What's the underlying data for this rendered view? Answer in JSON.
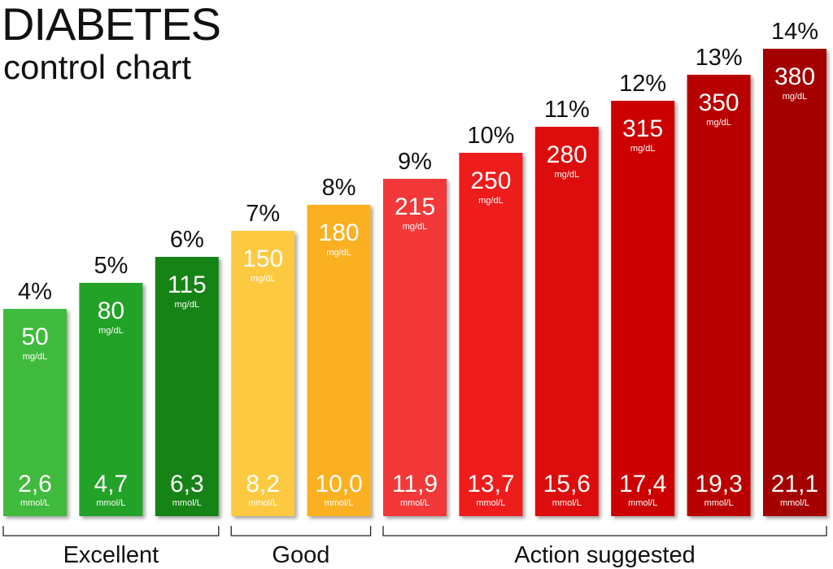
{
  "title": "DIABETES",
  "subtitle": "control chart",
  "colors": {
    "excellent": [
      "#3fba3c",
      "#23a227",
      "#128316"
    ],
    "good": [
      "#fdc940",
      "#fbb020"
    ],
    "action": [
      "#f23838",
      "#ef1c1c",
      "#de0d0d",
      "#cc0606",
      "#b80303",
      "#a50101"
    ]
  },
  "chart_data": {
    "type": "bar",
    "categories": [
      "4%",
      "5%",
      "6%",
      "7%",
      "8%",
      "9%",
      "10%",
      "11%",
      "12%",
      "13%",
      "14%"
    ],
    "series": [
      {
        "name": "mg/dL",
        "values": [
          50,
          80,
          115,
          150,
          180,
          215,
          250,
          280,
          315,
          350,
          380
        ]
      },
      {
        "name": "mmol/L",
        "values": [
          "2,6",
          "4,7",
          "6,3",
          "8,2",
          "10,0",
          "11,9",
          "13,7",
          "15,6",
          "17,4",
          "19,3",
          "21,1"
        ]
      }
    ],
    "unit_top": "mg/dL",
    "unit_bottom": "mmol/L",
    "groups": [
      {
        "label": "Excellent",
        "start": 0,
        "end": 2
      },
      {
        "label": "Good",
        "start": 3,
        "end": 4
      },
      {
        "label": "Action suggested",
        "start": 5,
        "end": 10
      }
    ],
    "ylim": [
      0,
      400
    ]
  }
}
